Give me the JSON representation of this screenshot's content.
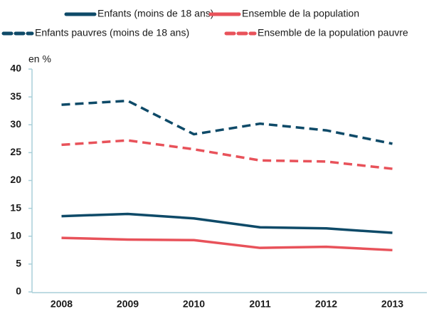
{
  "chart_data": {
    "type": "line",
    "y_label": "en %",
    "categories": [
      "2008",
      "2009",
      "2010",
      "2011",
      "2012",
      "2013"
    ],
    "ylim": [
      0,
      40
    ],
    "yticks": [
      0,
      5,
      10,
      15,
      20,
      25,
      30,
      35,
      40
    ],
    "series": [
      {
        "name": "Enfants (moins de 18 ans)",
        "color": "#0e4a68",
        "style": "solid",
        "values": [
          13.6,
          14.0,
          13.2,
          11.6,
          11.4,
          10.6
        ]
      },
      {
        "name": "Ensemble de la population",
        "color": "#e8525a",
        "style": "solid",
        "values": [
          9.7,
          9.4,
          9.3,
          7.9,
          8.1,
          7.5
        ]
      },
      {
        "name": "Enfants pauvres (moins de 18 ans)",
        "color": "#0e4a68",
        "style": "dashed",
        "values": [
          33.6,
          34.3,
          28.3,
          30.2,
          29.0,
          26.6
        ]
      },
      {
        "name": "Ensemble de la population pauvre",
        "color": "#e8525a",
        "style": "dashed",
        "values": [
          26.4,
          27.2,
          25.6,
          23.6,
          23.4,
          22.1
        ]
      }
    ]
  }
}
